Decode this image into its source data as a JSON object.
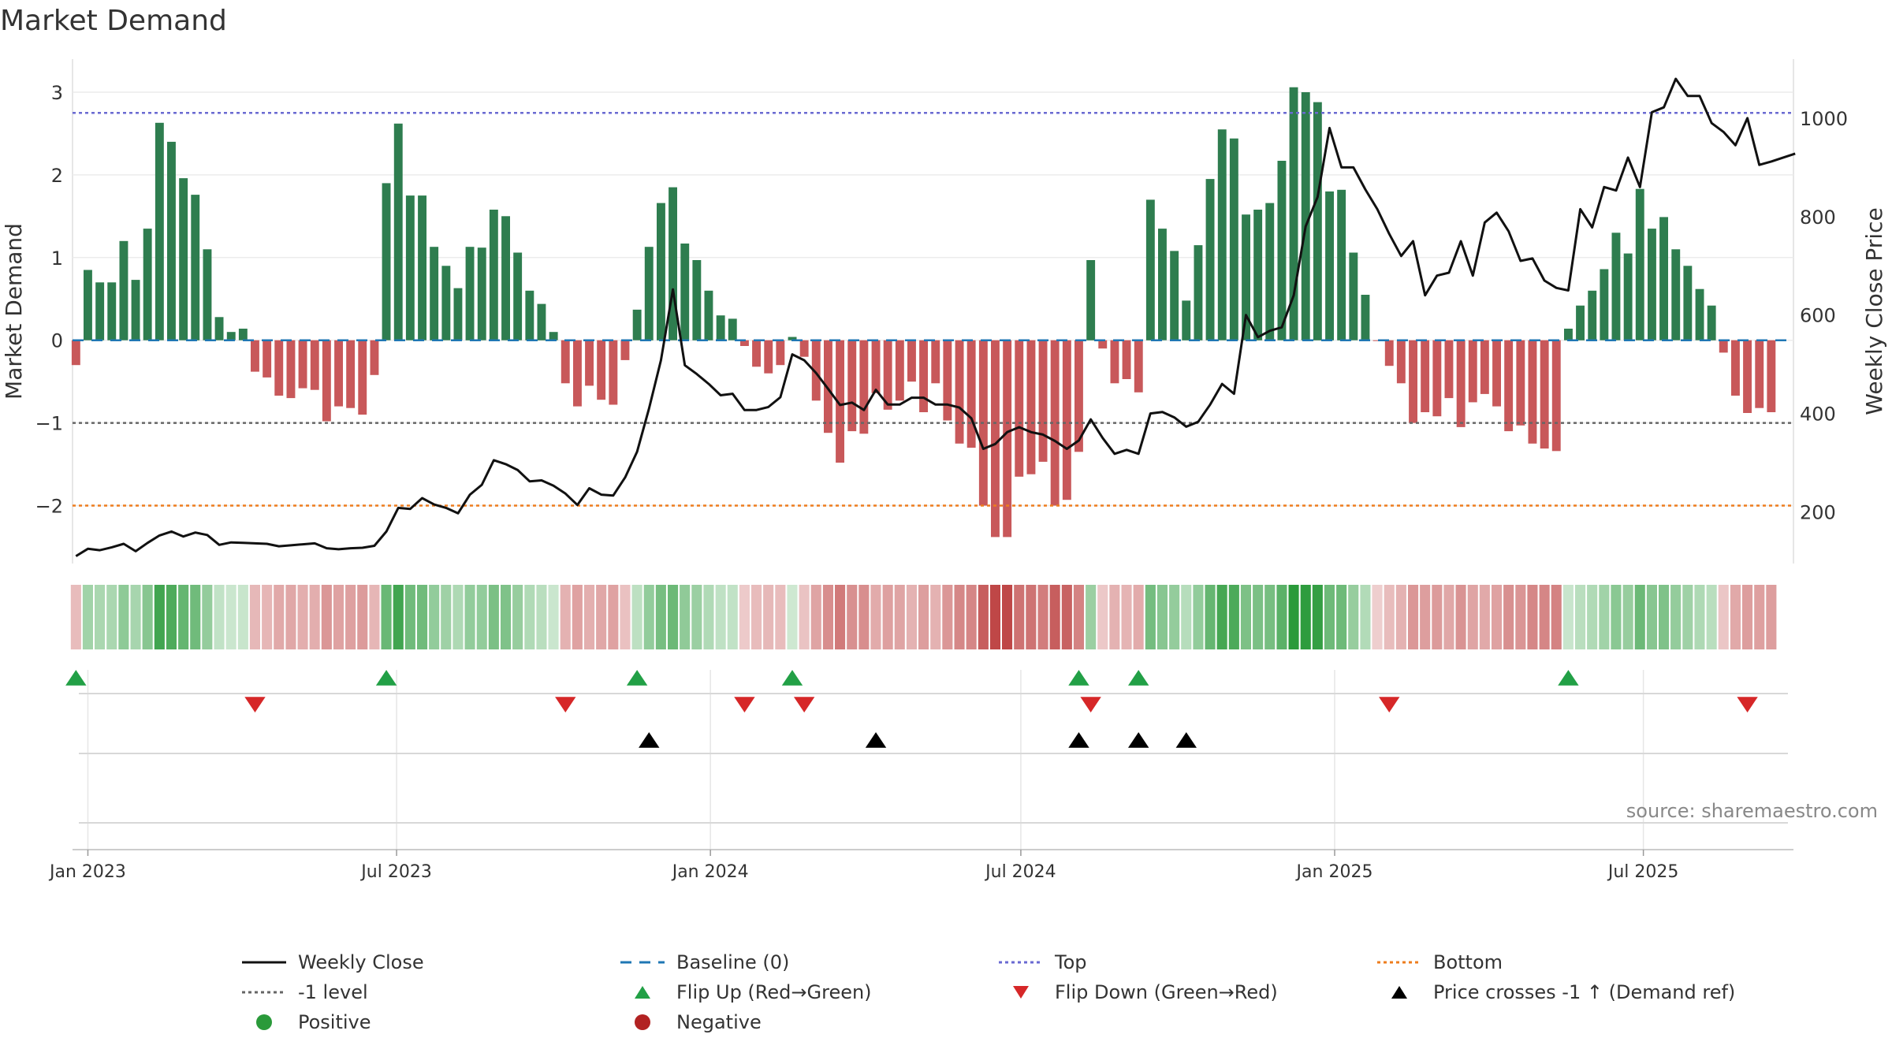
{
  "chart_data": {
    "type": "bar",
    "title": "Market Demand",
    "ylabel": "Market Demand",
    "y2label": "Weekly Close Price",
    "ylim": [
      -2.7,
      3.4
    ],
    "y2lim": [
      95,
      1120
    ],
    "yticks": [
      -2,
      -1,
      0,
      1,
      2,
      3
    ],
    "yticklabels": [
      "−2",
      "−1",
      "0",
      "1",
      "2",
      "3"
    ],
    "y2ticks": [
      200,
      400,
      600,
      800,
      1000
    ],
    "y2ticklabels": [
      "200",
      "400",
      "600",
      "800",
      "1000"
    ],
    "x_start": "2022-12-23",
    "x_end": "2025-09-27",
    "xticks": [
      {
        "date": "2023-01-01",
        "label": "Jan 2023"
      },
      {
        "date": "2023-07-01",
        "label": "Jul 2023"
      },
      {
        "date": "2024-01-01",
        "label": "Jan 2024"
      },
      {
        "date": "2024-07-01",
        "label": "Jul 2024"
      },
      {
        "date": "2025-01-01",
        "label": "Jan 2025"
      },
      {
        "date": "2025-07-01",
        "label": "Jul 2025"
      }
    ],
    "first_week": "2022-12-25",
    "demand": [
      -0.3,
      0.85,
      0.7,
      0.7,
      1.2,
      0.73,
      1.35,
      2.63,
      2.4,
      1.96,
      1.76,
      1.1,
      0.28,
      0.1,
      0.14,
      -0.38,
      -0.45,
      -0.67,
      -0.7,
      -0.58,
      -0.6,
      -0.98,
      -0.8,
      -0.82,
      -0.9,
      -0.42,
      1.9,
      2.62,
      1.75,
      1.75,
      1.13,
      0.9,
      0.63,
      1.13,
      1.12,
      1.58,
      1.5,
      1.06,
      0.6,
      0.44,
      0.1,
      -0.52,
      -0.8,
      -0.55,
      -0.72,
      -0.78,
      -0.24,
      0.37,
      1.13,
      1.66,
      1.85,
      1.17,
      0.97,
      0.6,
      0.3,
      0.26,
      -0.07,
      -0.32,
      -0.4,
      -0.3,
      0.04,
      -0.2,
      -0.73,
      -1.12,
      -1.48,
      -1.1,
      -1.13,
      -0.64,
      -0.84,
      -0.73,
      -0.5,
      -0.87,
      -0.52,
      -0.97,
      -1.25,
      -1.3,
      -2.0,
      -2.38,
      -2.38,
      -1.65,
      -1.62,
      -1.47,
      -2.0,
      -1.93,
      -1.35,
      0.97,
      -0.1,
      -0.52,
      -0.47,
      -0.63,
      1.7,
      1.35,
      1.08,
      0.48,
      1.15,
      1.95,
      2.55,
      2.44,
      1.52,
      1.58,
      1.66,
      2.17,
      3.06,
      3.0,
      2.88,
      1.8,
      1.82,
      1.06,
      0.55,
      -0.01,
      -0.31,
      -0.52,
      -1.0,
      -0.87,
      -0.92,
      -0.7,
      -1.05,
      -0.75,
      -0.65,
      -0.8,
      -1.1,
      -1.03,
      -1.25,
      -1.31,
      -1.34,
      0.14,
      0.42,
      0.6,
      0.86,
      1.3,
      1.05,
      1.83,
      1.35,
      1.49,
      1.1,
      0.9,
      0.62,
      0.42,
      -0.15,
      -0.67,
      -0.88,
      -0.82,
      -0.87
    ],
    "price": [
      110,
      125,
      122,
      128,
      135,
      120,
      137,
      152,
      160,
      150,
      158,
      153,
      133,
      138,
      137,
      136,
      135,
      130,
      132,
      134,
      136,
      126,
      124,
      126,
      127,
      131,
      160,
      208,
      206,
      228,
      215,
      208,
      197,
      235,
      255,
      305,
      297,
      285,
      262,
      264,
      253,
      237,
      214,
      248,
      235,
      233,
      270,
      322,
      410,
      508,
      652,
      498,
      480,
      460,
      437,
      440,
      407,
      407,
      413,
      433,
      520,
      508,
      482,
      450,
      417,
      422,
      407,
      448,
      418,
      418,
      432,
      432,
      418,
      418,
      412,
      390,
      328,
      338,
      362,
      372,
      362,
      357,
      344,
      328,
      345,
      388,
      350,
      318,
      326,
      318,
      400,
      403,
      392,
      373,
      383,
      418,
      460,
      440,
      600,
      555,
      568,
      575,
      640,
      780,
      840,
      980,
      900,
      900,
      855,
      815,
      765,
      720,
      750,
      640,
      680,
      686,
      750,
      680,
      788,
      808,
      770,
      710,
      715,
      670,
      655,
      650,
      815,
      778,
      860,
      853,
      920,
      860,
      1012,
      1022,
      1080,
      1045,
      1045,
      990,
      972,
      945,
      1000,
      905,
      912,
      920,
      928
    ],
    "top_level": 2.75,
    "bottom_level": -2.0,
    "minus1_level": -1.0,
    "baseline": 0,
    "flip_up_weeks": [
      0,
      26,
      47,
      60,
      84,
      89,
      125
    ],
    "flip_down_weeks": [
      15,
      41,
      56,
      61,
      85,
      110,
      140
    ],
    "price_cross_weeks": [
      48,
      67,
      84,
      89,
      93
    ],
    "colors": {
      "positive_bar": "#2e7d4f",
      "negative_bar": "#c8585a",
      "price_line": "#111111",
      "baseline": "#1f77b4",
      "top": "#6a6ad2",
      "bottom": "#ee7d1e",
      "minus1": "#666666",
      "flip_up": "#22a046",
      "flip_down": "#d62728",
      "cross": "#000000",
      "positive_dot": "#2a9a3a",
      "negative_dot": "#b22222"
    }
  },
  "source": "source: sharemaestro.com",
  "legend": [
    {
      "key": "price_line",
      "label": "Weekly Close"
    },
    {
      "key": "baseline",
      "label": "Baseline (0)"
    },
    {
      "key": "top",
      "label": "Top"
    },
    {
      "key": "bottom",
      "label": "Bottom"
    },
    {
      "key": "minus1",
      "label": "-1 level"
    },
    {
      "key": "flip_up",
      "label": "Flip Up (Red→Green)"
    },
    {
      "key": "flip_down",
      "label": "Flip Down (Green→Red)"
    },
    {
      "key": "cross",
      "label": "Price crosses -1 ↑ (Demand ref)"
    },
    {
      "key": "positive_dot",
      "label": "Positive"
    },
    {
      "key": "negative_dot",
      "label": "Negative"
    }
  ]
}
